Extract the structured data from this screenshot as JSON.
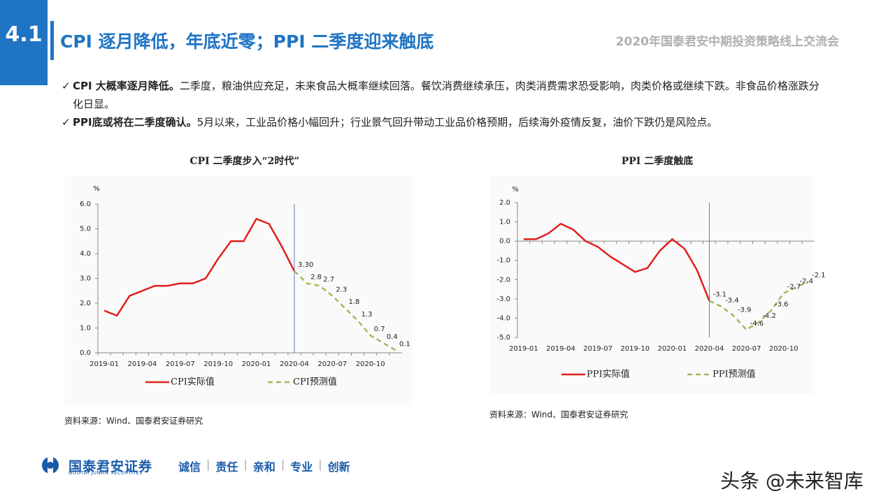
{
  "section": "4.1",
  "heading": "CPI 逐月降低，年底近零；PPI 二季度迎来触底",
  "event": "2020年国泰君安中期投资策略线上交流会",
  "bullets": [
    {
      "bold": "CPI 大概率逐月降低。",
      "text": "二季度，粮油供应充足，未来食品大概率继续回落。餐饮消费继续承压，肉类消费需求恐受影响，肉类价格或继续下跌。非食品价格涨跌分化日显。"
    },
    {
      "bold": "PPI底或将在二季度确认。",
      "text": "5月以来，工业品价格小幅回升；行业景气回升带动工业品价格预期，后续海外疫情反复，油价下跌仍是风险点。"
    }
  ],
  "chart_data": [
    {
      "type": "line",
      "title": "CPI 二季度步入“2时代”",
      "unit": "%",
      "source": "资料来源：Wind、国泰君安证券研究",
      "categories": [
        "2019-01",
        null,
        null,
        "2019-04",
        null,
        null,
        "2019-07",
        null,
        null,
        "2019-10",
        null,
        null,
        "2020-01",
        null,
        null,
        "2020-04",
        null,
        null,
        "2020-07",
        null,
        null,
        "2020-10",
        null,
        null
      ],
      "series": [
        {
          "name": "CPI实际值",
          "color": "#e0201c",
          "style": "solid",
          "values": [
            1.7,
            1.5,
            2.3,
            2.5,
            2.7,
            2.7,
            2.8,
            2.8,
            3.0,
            3.8,
            4.5,
            4.5,
            5.4,
            5.2,
            4.3,
            3.3,
            null,
            null,
            null,
            null,
            null,
            null,
            null,
            null
          ]
        },
        {
          "name": "CPI预测值",
          "color": "#9bbb59",
          "style": "dashed",
          "values": [
            null,
            null,
            null,
            null,
            null,
            null,
            null,
            null,
            null,
            null,
            null,
            null,
            null,
            null,
            null,
            3.3,
            2.8,
            2.7,
            2.3,
            1.8,
            1.3,
            0.7,
            0.4,
            0.1
          ],
          "value_labels": [
            null,
            null,
            null,
            null,
            null,
            null,
            null,
            null,
            null,
            null,
            null,
            null,
            null,
            null,
            null,
            "3.30",
            "2.8",
            "2.7",
            "2.3",
            "1.8",
            "1.3",
            "0.7",
            "0.4",
            "0.1"
          ]
        }
      ],
      "ylim": [
        0,
        6
      ],
      "yticks": [
        {
          "value": 0,
          "label": "0.0"
        },
        {
          "value": 1,
          "label": "1.0"
        },
        {
          "value": 2,
          "label": "2.0"
        },
        {
          "value": 3,
          "label": "3.0"
        },
        {
          "value": 4,
          "label": "4.0"
        },
        {
          "value": 5,
          "label": "5.0"
        },
        {
          "value": 6,
          "label": "6.0"
        }
      ]
    },
    {
      "type": "line",
      "title": "PPI 二季度触底",
      "unit": "%",
      "source": "资料来源：Wind、国泰君安证券研究",
      "categories": [
        "2019-01",
        null,
        null,
        "2019-04",
        null,
        null,
        "2019-07",
        null,
        null,
        "2019-10",
        null,
        null,
        "2020-01",
        null,
        null,
        "2020-04",
        null,
        null,
        "2020-07",
        null,
        null,
        "2020-10",
        null,
        null
      ],
      "series": [
        {
          "name": "PPI实际值",
          "color": "#e0201c",
          "style": "solid",
          "values": [
            0.1,
            0.1,
            0.4,
            0.9,
            0.6,
            0.0,
            -0.3,
            -0.8,
            -1.2,
            -1.6,
            -1.4,
            -0.5,
            0.1,
            -0.4,
            -1.5,
            -3.1,
            null,
            null,
            null,
            null,
            null,
            null,
            null,
            null
          ]
        },
        {
          "name": "PPI预测值",
          "color": "#9bbb59",
          "style": "dashed",
          "values": [
            null,
            null,
            null,
            null,
            null,
            null,
            null,
            null,
            null,
            null,
            null,
            null,
            null,
            null,
            null,
            -3.1,
            -3.4,
            -3.9,
            -4.6,
            -4.2,
            -3.6,
            -2.7,
            -2.4,
            -2.1
          ]
        }
      ],
      "ylim": [
        -5,
        2
      ],
      "yticks": [
        {
          "value": -5,
          "label": "-5.0"
        },
        {
          "value": -4,
          "label": "-4.0"
        },
        {
          "value": -3,
          "label": "-3.0"
        },
        {
          "value": -2,
          "label": "-2.0"
        },
        {
          "value": -1,
          "label": "-1.0"
        },
        {
          "value": 0,
          "label": "0.0"
        },
        {
          "value": 1,
          "label": "1.0"
        },
        {
          "value": 2,
          "label": "2.0"
        }
      ]
    }
  ],
  "footer": {
    "company": "国泰君安证券",
    "company_en": "GUOTAI JUNAN SECURITIES",
    "values": [
      "诚信",
      "责任",
      "亲和",
      "专业",
      "创新"
    ],
    "watermark": "头条 @未来智库"
  }
}
